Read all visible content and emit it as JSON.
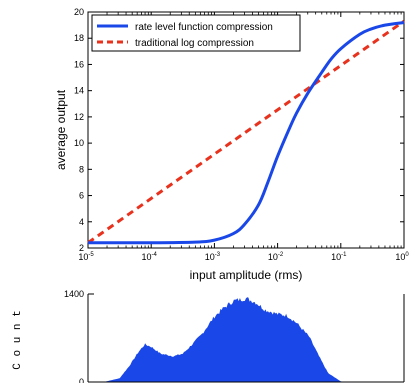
{
  "chart_data": [
    {
      "type": "line",
      "xlabel": "input amplitude (rms)",
      "ylabel": "average output",
      "xscale": "log",
      "xlim": [
        1e-05,
        1
      ],
      "ylim": [
        2,
        20
      ],
      "x_ticks": [
        {
          "base": "10",
          "exp": "-5"
        },
        {
          "base": "10",
          "exp": "-4"
        },
        {
          "base": "10",
          "exp": "-3"
        },
        {
          "base": "10",
          "exp": "-2"
        },
        {
          "base": "10",
          "exp": "-1"
        },
        {
          "base": "10",
          "exp": "0"
        }
      ],
      "y_ticks": [
        "2",
        "4",
        "6",
        "8",
        "10",
        "12",
        "14",
        "16",
        "18",
        "20"
      ],
      "legend_position": "top-left",
      "series": [
        {
          "name": "rate level function compression",
          "color": "#1a47e8",
          "line_style": "solid",
          "x": [
            1e-05,
            0.0001,
            0.0005,
            0.001,
            0.002,
            0.003,
            0.005,
            0.007,
            0.01,
            0.015,
            0.02,
            0.03,
            0.05,
            0.07,
            0.1,
            0.2,
            0.3,
            0.5,
            1
          ],
          "y": [
            2.4,
            2.4,
            2.45,
            2.6,
            3.1,
            3.8,
            5.3,
            7.0,
            9.0,
            11.0,
            12.3,
            13.8,
            15.4,
            16.4,
            17.2,
            18.3,
            18.7,
            19.0,
            19.2
          ]
        },
        {
          "name": "traditional log compression",
          "color": "#e8321e",
          "line_style": "dashed",
          "x": [
            1e-05,
            1
          ],
          "y": [
            2.4,
            19.3
          ]
        }
      ]
    },
    {
      "type": "area",
      "ylabel": "Count",
      "y_ticks": [
        "0",
        "1400"
      ],
      "ylim": [
        0,
        1400
      ],
      "color": "#1a47e8",
      "x": [
        0.0,
        0.05,
        0.1,
        0.13,
        0.16,
        0.18,
        0.2,
        0.23,
        0.27,
        0.3,
        0.33,
        0.36,
        0.38,
        0.4,
        0.43,
        0.46,
        0.5,
        0.53,
        0.56,
        0.6,
        0.63,
        0.66,
        0.7,
        0.73,
        0.76,
        0.8,
        0.83,
        0.86,
        0.9,
        0.95,
        1.0
      ],
      "values": [
        0,
        0,
        60,
        250,
        480,
        600,
        560,
        450,
        410,
        450,
        600,
        760,
        900,
        1040,
        1180,
        1290,
        1330,
        1270,
        1150,
        1080,
        1060,
        940,
        720,
        420,
        140,
        10,
        0,
        0,
        0,
        0,
        0
      ]
    }
  ]
}
